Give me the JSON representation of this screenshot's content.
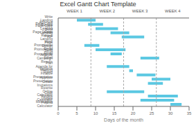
{
  "chart_data": {
    "type": "gantt",
    "orientation": "horizontal",
    "stacked": true,
    "title": "Excel Gantt Chart Template",
    "x_label": "Days of the month",
    "color": "#5BC8E2",
    "grid": false,
    "categories": [
      "Write Landing Page Copy",
      "Add new Page Copy",
      "Review Landing Page Design",
      "Build Landing Page",
      "Code Review Landing Page",
      null,
      "Write Promotional Email",
      "Design Promotional Email",
      "Send Promotional Email",
      "Analyze Campaign Results",
      null,
      "Plan Agenda for Meeting",
      "Reserve Room",
      "Finalize Presentation",
      "Approve Presentation",
      "Create Invitations",
      null,
      "Rewrite Online Calculator",
      "Code Review Calculator",
      "Update Messaging",
      "Publish Calculator"
    ],
    "starts": [
      5,
      8,
      10,
      14,
      17,
      0,
      7,
      10,
      14,
      22,
      0,
      13,
      19,
      21,
      25,
      24,
      0,
      13,
      24,
      22,
      30
    ],
    "values": [
      5,
      4,
      6,
      5,
      6,
      0,
      4,
      8,
      3,
      5,
      0,
      6,
      1,
      5,
      5,
      4,
      0,
      10,
      8,
      9,
      3
    ],
    "xlim": [
      0,
      35
    ],
    "xticks": [
      0,
      5,
      10,
      15,
      20,
      25,
      30,
      35
    ],
    "week_labels": [
      {
        "value": 4.375,
        "label": "WEEK 1"
      },
      {
        "value": 13.125,
        "label": "WEEK 2"
      },
      {
        "value": 21.875,
        "label": "WEEK 3"
      },
      {
        "value": 30.625,
        "label": "WEEK 4"
      }
    ],
    "week_lines": [
      8.75,
      17.5,
      26.25
    ]
  }
}
